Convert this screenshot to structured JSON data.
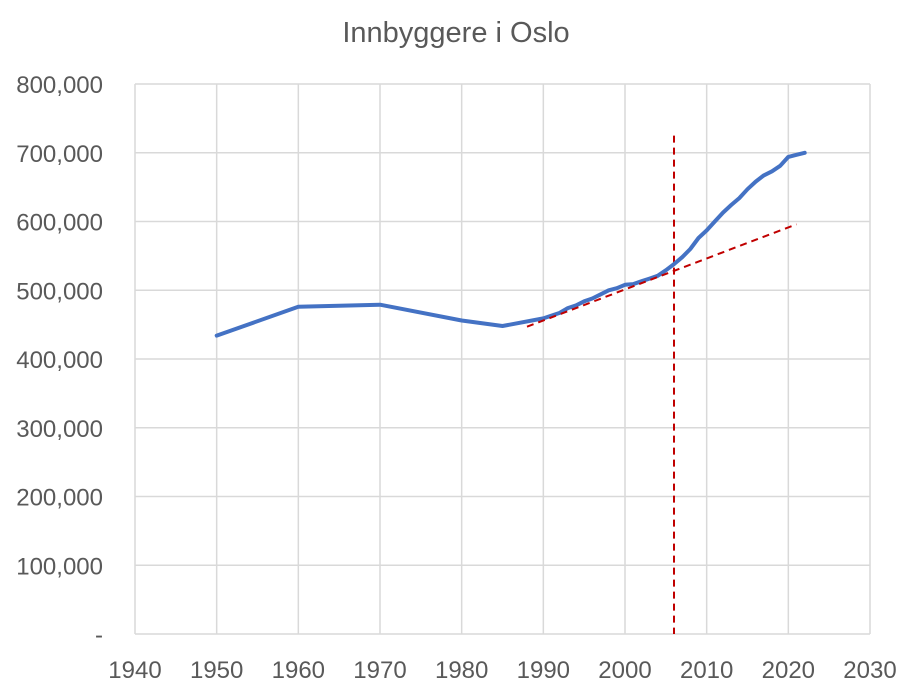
{
  "chart_data": {
    "type": "line",
    "title": "Innbyggere i Oslo",
    "xlabel": "",
    "ylabel": "",
    "xlim": [
      1940,
      2030
    ],
    "ylim": [
      0,
      800000
    ],
    "x_ticks": [
      "1940",
      "1950",
      "1960",
      "1970",
      "1980",
      "1990",
      "2000",
      "2010",
      "2020",
      "2030"
    ],
    "y_ticks": [
      "-",
      "100,000",
      "200,000",
      "300,000",
      "400,000",
      "500,000",
      "600,000",
      "700,000",
      "800,000"
    ],
    "grid": true,
    "legend": "none",
    "colors": {
      "population": "#4472c4",
      "trend": "#c00000",
      "marker": "#c00000",
      "grid": "#d9d9d9",
      "text": "#595959"
    },
    "series": [
      {
        "style": "solid",
        "points": [
          [
            1950,
            434000
          ],
          [
            1960,
            476000
          ],
          [
            1970,
            479000
          ],
          [
            1980,
            456000
          ],
          [
            1985,
            448000
          ],
          [
            1990,
            459000
          ],
          [
            1992,
            467000
          ],
          [
            1993,
            474000
          ],
          [
            1994,
            478000
          ],
          [
            1995,
            484000
          ],
          [
            1996,
            488000
          ],
          [
            1997,
            494000
          ],
          [
            1998,
            500000
          ],
          [
            1999,
            503000
          ],
          [
            2000,
            508000
          ],
          [
            2001,
            509000
          ],
          [
            2002,
            513000
          ],
          [
            2003,
            517000
          ],
          [
            2004,
            521000
          ],
          [
            2005,
            529000
          ],
          [
            2006,
            538000
          ],
          [
            2007,
            548000
          ],
          [
            2008,
            560000
          ],
          [
            2009,
            576000
          ],
          [
            2010,
            587000
          ],
          [
            2011,
            600000
          ],
          [
            2012,
            613000
          ],
          [
            2013,
            624000
          ],
          [
            2014,
            634000
          ],
          [
            2015,
            647000
          ],
          [
            2016,
            658000
          ],
          [
            2017,
            667000
          ],
          [
            2018,
            673000
          ],
          [
            2019,
            681000
          ],
          [
            2020,
            694000
          ],
          [
            2021,
            697000
          ],
          [
            2022,
            700000
          ]
        ]
      },
      {
        "style": "dashed",
        "points": [
          [
            1988,
            447000
          ],
          [
            2021,
            596000
          ]
        ]
      }
    ],
    "vertical_line": {
      "x": 2006,
      "y_top": 725000,
      "style": "dashed"
    }
  }
}
